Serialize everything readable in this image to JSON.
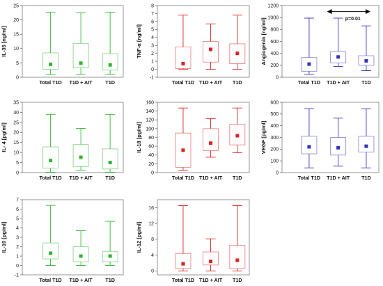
{
  "chart_data": [
    {
      "type": "boxplot",
      "ylabel": "IL-35 [ng/ml]",
      "ylim": [
        0,
        25
      ],
      "yticks": [
        0,
        5,
        10,
        15,
        20,
        25
      ],
      "color": "#33b533",
      "categories": [
        "Total  T1D",
        "T1D + AIT",
        "T1D"
      ],
      "boxes": [
        {
          "min": 1.0,
          "q1": 2.8,
          "median": 4.5,
          "q3": 8.5,
          "max": 22.7
        },
        {
          "min": 1.0,
          "q1": 3.3,
          "median": 4.9,
          "q3": 11.8,
          "max": 22.5
        },
        {
          "min": 1.0,
          "q1": 2.5,
          "median": 4.3,
          "q3": 8.2,
          "max": 22.7
        }
      ]
    },
    {
      "type": "boxplot",
      "ylabel": "TNF-α [ng/ml]",
      "ylim": [
        -1,
        8
      ],
      "yticks": [
        -1,
        0,
        1,
        2,
        3,
        4,
        5,
        6,
        7,
        8
      ],
      "color": "#dd2222",
      "categories": [
        "Total  T1D",
        "T1D + AIT",
        "T1D"
      ],
      "boxes": [
        {
          "min": 0.0,
          "q1": 0.1,
          "median": 0.7,
          "q3": 2.8,
          "max": 6.8
        },
        {
          "min": 0.0,
          "q1": 0.9,
          "median": 2.5,
          "q3": 3.5,
          "max": 5.7
        },
        {
          "min": 0.0,
          "q1": 0.7,
          "median": 2.0,
          "q3": 3.2,
          "max": 6.8
        }
      ]
    },
    {
      "type": "boxplot",
      "ylabel": "Angiogenin [ng/ml]",
      "ylim": [
        0,
        1200
      ],
      "yticks": [
        0,
        200,
        400,
        600,
        800,
        1000,
        1200
      ],
      "color": "#3333bb",
      "categories": [
        "Total  T1D",
        "T1D + AIT",
        "T1D"
      ],
      "boxes": [
        {
          "min": 50,
          "q1": 100,
          "median": 220,
          "q3": 330,
          "max": 990
        },
        {
          "min": 180,
          "q1": 240,
          "median": 340,
          "q3": 430,
          "max": 990
        },
        {
          "min": 110,
          "q1": 200,
          "median": 275,
          "q3": 360,
          "max": 860
        }
      ],
      "annotation": {
        "text": "p=0.01",
        "from_category": 1,
        "to_category": 2,
        "y": 1100,
        "text_y": 980
      }
    },
    {
      "type": "boxplot",
      "ylabel": "IL- 4 [pg/ml]",
      "ylim": [
        0,
        35
      ],
      "yticks": [
        0,
        5,
        10,
        15,
        20,
        25,
        30,
        35
      ],
      "color": "#33b533",
      "categories": [
        "Total  T1D",
        "T1D + AIT",
        "T1D"
      ],
      "boxes": [
        {
          "min": 0.2,
          "q1": 2.2,
          "median": 6.0,
          "q3": 12.8,
          "max": 29.0
        },
        {
          "min": 1.2,
          "q1": 3.0,
          "median": 7.6,
          "q3": 14.0,
          "max": 22.0
        },
        {
          "min": 0.2,
          "q1": 1.8,
          "median": 5.0,
          "q3": 11.8,
          "max": 29.0
        }
      ]
    },
    {
      "type": "boxplot",
      "ylabel": "IL-18 [pg/ml]",
      "ylim": [
        0,
        160
      ],
      "yticks": [
        0,
        20,
        40,
        60,
        80,
        100,
        120,
        140,
        160
      ],
      "color": "#dd2222",
      "categories": [
        "Total  T1D",
        "T1D + AIT",
        "T1D"
      ],
      "boxes": [
        {
          "min": 5,
          "q1": 12,
          "median": 51,
          "q3": 90,
          "max": 147
        },
        {
          "min": 35,
          "q1": 50,
          "median": 67,
          "q3": 100,
          "max": 123
        },
        {
          "min": 45,
          "q1": 63,
          "median": 84,
          "q3": 110,
          "max": 147
        }
      ]
    },
    {
      "type": "boxplot",
      "ylabel": "VEGF [pg/ml]",
      "ylim": [
        0,
        600
      ],
      "yticks": [
        0,
        100,
        200,
        300,
        400,
        500,
        600
      ],
      "color": "#3333bb",
      "categories": [
        "Total  T1D",
        "T1D + AIT",
        "T1D"
      ],
      "boxes": [
        {
          "min": 40,
          "q1": 160,
          "median": 220,
          "q3": 310,
          "max": 545
        },
        {
          "min": 55,
          "q1": 150,
          "median": 212,
          "q3": 300,
          "max": 465
        },
        {
          "min": 40,
          "q1": 175,
          "median": 225,
          "q3": 310,
          "max": 545
        }
      ]
    },
    {
      "type": "boxplot",
      "ylabel": "IL-10 [pg/ml]",
      "ylim": [
        -1,
        7
      ],
      "yticks": [
        -1,
        0,
        1,
        2,
        3,
        4,
        5,
        6,
        7
      ],
      "color": "#33b533",
      "categories": [
        "Total  T1D",
        "T1D + AIT",
        "T1D"
      ],
      "boxes": [
        {
          "min": 0.0,
          "q1": 0.7,
          "median": 1.3,
          "q3": 2.4,
          "max": 6.4
        },
        {
          "min": 0.0,
          "q1": 0.4,
          "median": 1.0,
          "q3": 2.0,
          "max": 3.7
        },
        {
          "min": 0.0,
          "q1": 0.4,
          "median": 1.0,
          "q3": 1.5,
          "max": 4.7
        }
      ]
    },
    {
      "type": "boxplot",
      "ylabel": "IL-12 [pg/ml]",
      "ylim": [
        -1,
        18
      ],
      "yticks": [
        0,
        4,
        8,
        12,
        16
      ],
      "color": "#dd2222",
      "categories": [
        "Total  T1D",
        "T1D + AIT",
        "T1D"
      ],
      "boxes": [
        {
          "min": 0.0,
          "q1": 0.6,
          "median": 1.8,
          "q3": 4.4,
          "max": 16.5
        },
        {
          "min": 0.0,
          "q1": 1.5,
          "median": 2.4,
          "q3": 4.8,
          "max": 8.1
        },
        {
          "min": 0.0,
          "q1": 0.6,
          "median": 2.7,
          "q3": 6.5,
          "max": 16.5
        }
      ]
    }
  ]
}
